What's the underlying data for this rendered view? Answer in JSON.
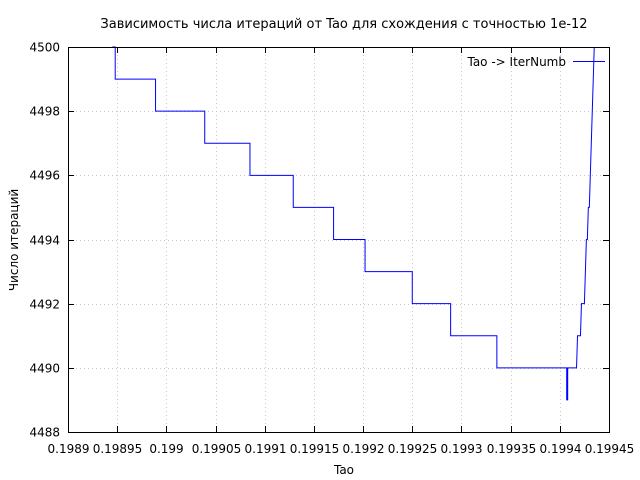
{
  "chart_data": {
    "type": "line",
    "title": "Зависимость числа итераций от Tao для схождения с точностью 1e-12",
    "xlabel": "Tao",
    "ylabel": "Число итераций",
    "xlim": [
      0.1989,
      0.19945
    ],
    "ylim": [
      4488,
      4500
    ],
    "xticks": [
      0.1989,
      0.19895,
      0.199,
      0.19905,
      0.1991,
      0.19915,
      0.1992,
      0.19925,
      0.1993,
      0.19935,
      0.1994,
      0.19945
    ],
    "xtick_labels": [
      "0.1989",
      "0.19895",
      "0.199",
      "0.19905",
      "0.1991",
      "0.19915",
      "0.1992",
      "0.19925",
      "0.1993",
      "0.19935",
      "0.1994",
      "0.19945"
    ],
    "yticks": [
      4488,
      4490,
      4492,
      4494,
      4496,
      4498,
      4500
    ],
    "ytick_labels": [
      "4488",
      "4490",
      "4492",
      "4494",
      "4496",
      "4498",
      "4500"
    ],
    "grid": true,
    "legend": "top-right",
    "color": "#0000ff",
    "series": [
      {
        "name": "Tao -> IterNumb",
        "points": [
          [
            0.198945,
            4500
          ],
          [
            0.198948,
            4500
          ],
          [
            0.198948,
            4499
          ],
          [
            0.198989,
            4499
          ],
          [
            0.198989,
            4498
          ],
          [
            0.199039,
            4498
          ],
          [
            0.199039,
            4497
          ],
          [
            0.199085,
            4497
          ],
          [
            0.199085,
            4496
          ],
          [
            0.199129,
            4496
          ],
          [
            0.199129,
            4495
          ],
          [
            0.19917,
            4495
          ],
          [
            0.19917,
            4494
          ],
          [
            0.199202,
            4494
          ],
          [
            0.199202,
            4493
          ],
          [
            0.19925,
            4493
          ],
          [
            0.19925,
            4492
          ],
          [
            0.199289,
            4492
          ],
          [
            0.199289,
            4491
          ],
          [
            0.199336,
            4491
          ],
          [
            0.199336,
            4490
          ],
          [
            0.199407,
            4490
          ],
          [
            0.199407,
            4489
          ],
          [
            0.199408,
            4489
          ],
          [
            0.199408,
            4490
          ],
          [
            0.199417,
            4490
          ],
          [
            0.199418,
            4491
          ],
          [
            0.199421,
            4491
          ],
          [
            0.199422,
            4492
          ],
          [
            0.199425,
            4492
          ],
          [
            0.199426,
            4493
          ],
          [
            0.199427,
            4494
          ],
          [
            0.199428,
            4494
          ],
          [
            0.199429,
            4495
          ],
          [
            0.19943,
            4495
          ],
          [
            0.199431,
            4496
          ],
          [
            0.199432,
            4497
          ],
          [
            0.199433,
            4498
          ],
          [
            0.199434,
            4499
          ],
          [
            0.199435,
            4500
          ]
        ]
      }
    ]
  }
}
